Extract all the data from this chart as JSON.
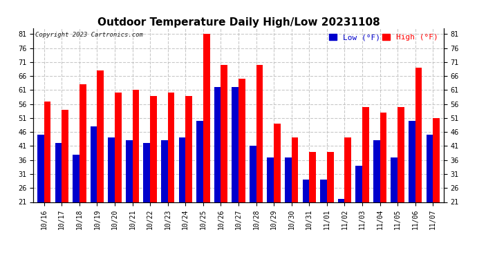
{
  "title": "Outdoor Temperature Daily High/Low 20231108",
  "copyright": "Copyright 2023 Cartronics.com",
  "legend_low_label": "Low (°F)",
  "legend_high_label": "High (°F)",
  "legend_low_color": "#0000cc",
  "legend_high_color": "#ff0000",
  "dates": [
    "10/16",
    "10/17",
    "10/18",
    "10/19",
    "10/20",
    "10/21",
    "10/22",
    "10/23",
    "10/24",
    "10/25",
    "10/26",
    "10/27",
    "10/28",
    "10/29",
    "10/30",
    "10/31",
    "11/01",
    "11/02",
    "11/03",
    "11/04",
    "11/05",
    "11/06",
    "11/07"
  ],
  "high": [
    57.0,
    54.0,
    63.0,
    68.0,
    60.0,
    61.0,
    59.0,
    60.0,
    59.0,
    81.0,
    70.0,
    65.0,
    70.0,
    49.0,
    44.0,
    39.0,
    39.0,
    44.0,
    55.0,
    53.0,
    55.0,
    69.0,
    51.0
  ],
  "low": [
    45.0,
    42.0,
    38.0,
    48.0,
    44.0,
    43.0,
    42.0,
    43.0,
    44.0,
    50.0,
    62.0,
    62.0,
    41.0,
    37.0,
    37.0,
    29.0,
    29.0,
    22.0,
    34.0,
    43.0,
    37.0,
    50.0,
    45.0
  ],
  "ylim_min": 21.0,
  "ylim_max": 83.0,
  "bar_bottom": 21.0,
  "yticks": [
    21.0,
    26.0,
    31.0,
    36.0,
    41.0,
    46.0,
    51.0,
    56.0,
    61.0,
    66.0,
    71.0,
    76.0,
    81.0
  ],
  "bg_color": "#ffffff",
  "bar_width": 0.38,
  "title_fontsize": 11,
  "tick_fontsize": 7,
  "grid_color": "#bbbbbb",
  "grid_style": "--",
  "grid_alpha": 0.8
}
